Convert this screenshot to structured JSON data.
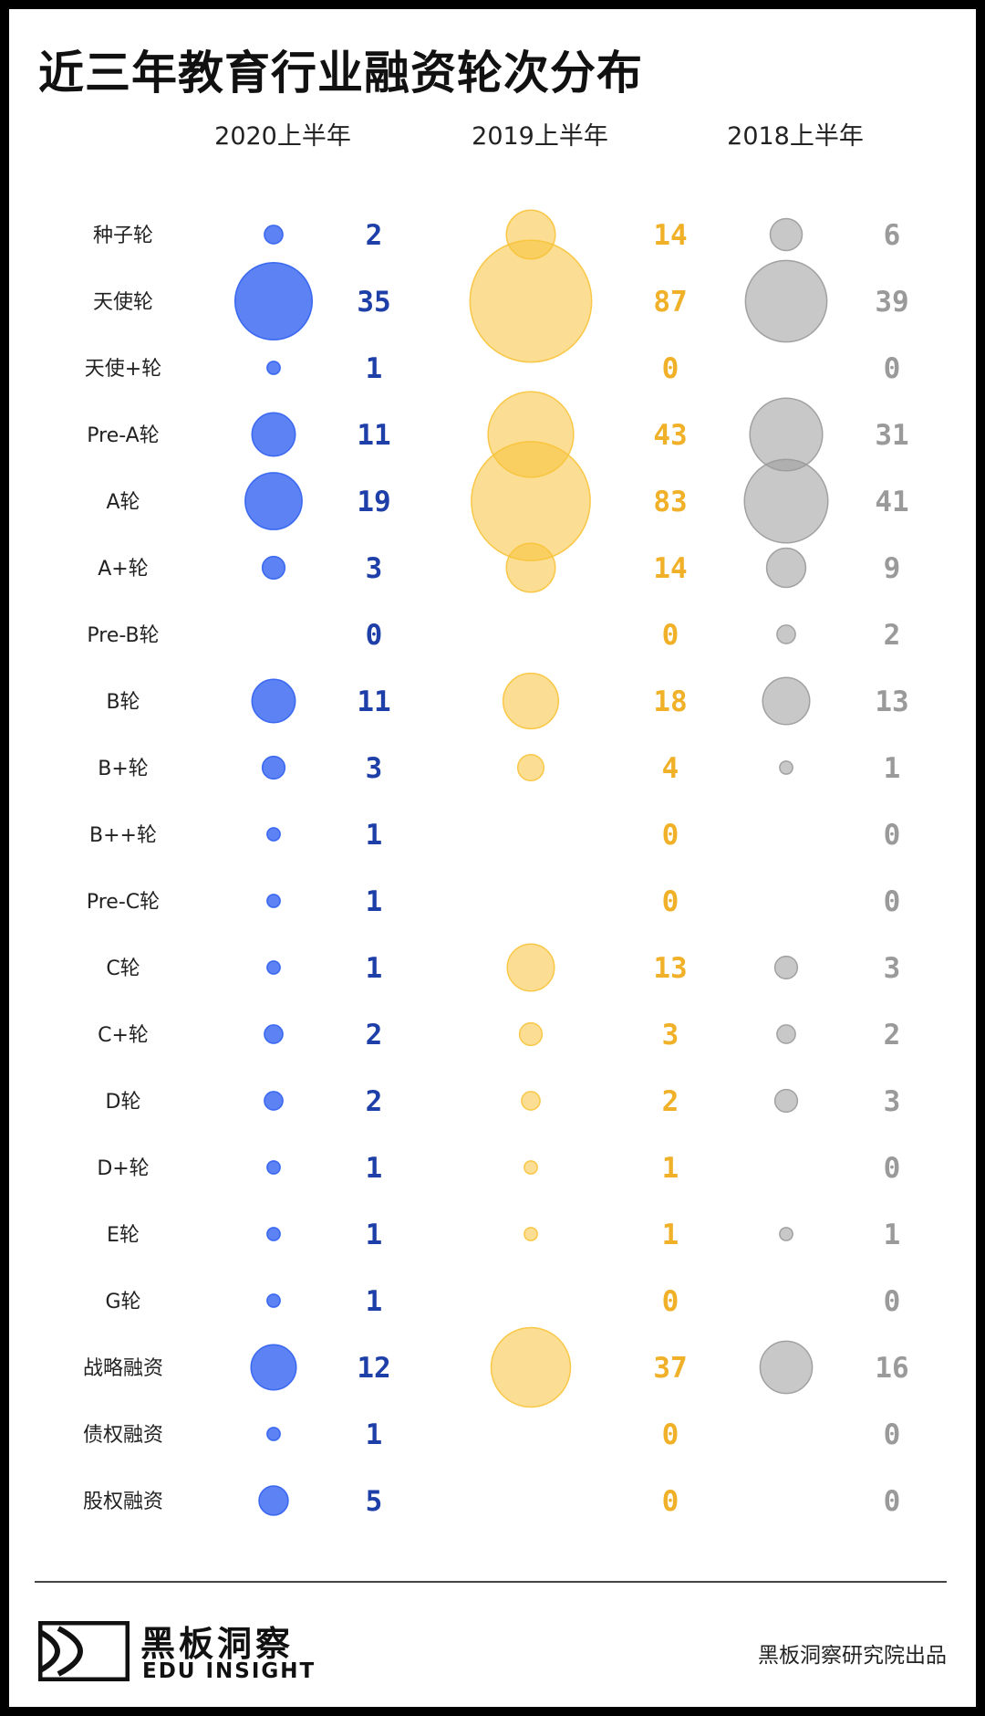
{
  "chart_data": {
    "type": "bubble-table",
    "title": "近三年教育行业融资轮次分布",
    "series": [
      {
        "name": "2020上半年",
        "color": "#2f5ff0",
        "text_color": "#1f3fa8",
        "values": [
          2,
          35,
          1,
          11,
          19,
          3,
          0,
          11,
          3,
          1,
          1,
          1,
          2,
          2,
          1,
          1,
          1,
          12,
          1,
          5
        ]
      },
      {
        "name": "2019上半年",
        "color": "#f8c33a",
        "text_color": "#f0b028",
        "values": [
          14,
          87,
          0,
          43,
          83,
          14,
          0,
          18,
          4,
          0,
          0,
          13,
          3,
          2,
          1,
          1,
          0,
          37,
          0,
          0
        ]
      },
      {
        "name": "2018上半年",
        "color": "#9a9a9a",
        "text_color": "#9a9a9a",
        "values": [
          6,
          39,
          0,
          31,
          41,
          9,
          2,
          13,
          1,
          0,
          0,
          3,
          2,
          3,
          0,
          1,
          0,
          16,
          0,
          0
        ]
      }
    ],
    "categories": [
      "种子轮",
      "天使轮",
      "天使+轮",
      "Pre-A轮",
      "A轮",
      "A+轮",
      "Pre-B轮",
      "B轮",
      "B+轮",
      "B++轮",
      "Pre-C轮",
      "C轮",
      "C+轮",
      "D轮",
      "D+轮",
      "E轮",
      "G轮",
      "战略融资",
      "债权融资",
      "股权融资"
    ]
  },
  "footer": {
    "logo_cn": "黑板洞察",
    "logo_en": "EDU INSIGHT",
    "credit": "黑板洞察研究院出品"
  }
}
